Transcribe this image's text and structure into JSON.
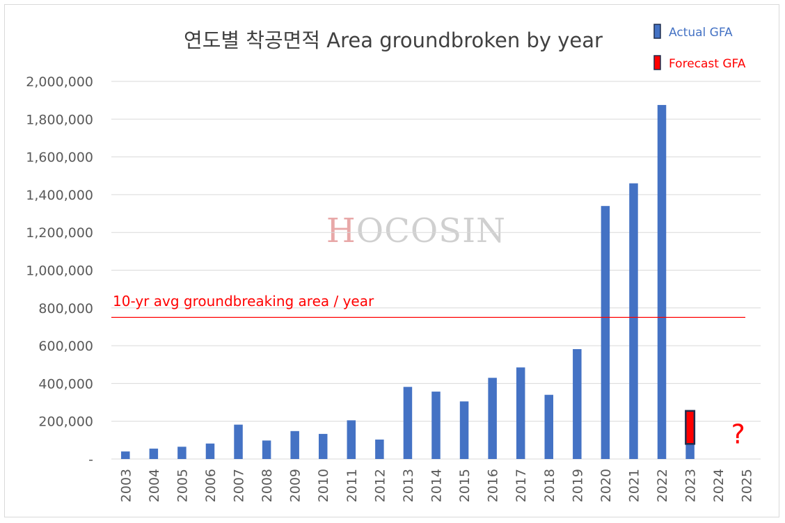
{
  "colors": {
    "actual": "#4472c4",
    "forecast": "#ff0000",
    "forecast_border": "#1f2d4d",
    "grid": "#d9d9d9",
    "avg_line": "#ff0000",
    "watermark_h": "#e8a8a8",
    "watermark_rest": "#d0d0d0"
  },
  "watermark": {
    "first": "H",
    "rest": "OCOSIN"
  },
  "chart_data": {
    "type": "bar",
    "title": "연도별 착공면적 Area groundbroken by year",
    "xlabel": "",
    "ylabel": "",
    "ylim": [
      0,
      2000000
    ],
    "yticks": [
      0,
      200000,
      400000,
      600000,
      800000,
      1000000,
      1200000,
      1400000,
      1600000,
      1800000,
      2000000
    ],
    "ytick_labels": [
      "-",
      "200,000",
      "400,000",
      "600,000",
      "800,000",
      "1,000,000",
      "1,200,000",
      "1,400,000",
      "1,600,000",
      "1,800,000",
      "2,000,000"
    ],
    "categories": [
      "2003",
      "2004",
      "2005",
      "2006",
      "2007",
      "2008",
      "2009",
      "2010",
      "2011",
      "2012",
      "2013",
      "2014",
      "2015",
      "2016",
      "2017",
      "2018",
      "2019",
      "2020",
      "2021",
      "2022",
      "2023",
      "2024",
      "2025"
    ],
    "grid": true,
    "legend_position": "top-right",
    "series": [
      {
        "name": "Actual GFA",
        "values": [
          40000,
          55000,
          65000,
          82000,
          182000,
          98000,
          148000,
          133000,
          205000,
          103000,
          382000,
          357000,
          305000,
          430000,
          485000,
          340000,
          582000,
          1340000,
          1460000,
          1875000,
          80000,
          null,
          null
        ]
      },
      {
        "name": "Forecast GFA",
        "values": [
          null,
          null,
          null,
          null,
          null,
          null,
          null,
          null,
          null,
          null,
          null,
          null,
          null,
          null,
          null,
          null,
          null,
          null,
          null,
          null,
          175000,
          null,
          null
        ],
        "base": 80000
      }
    ],
    "reference_line": {
      "label": "10-yr avg groundbreaking area / year",
      "value": 750000
    },
    "annotations": [
      {
        "text": "?",
        "category": "2025",
        "value": 135000
      }
    ]
  }
}
